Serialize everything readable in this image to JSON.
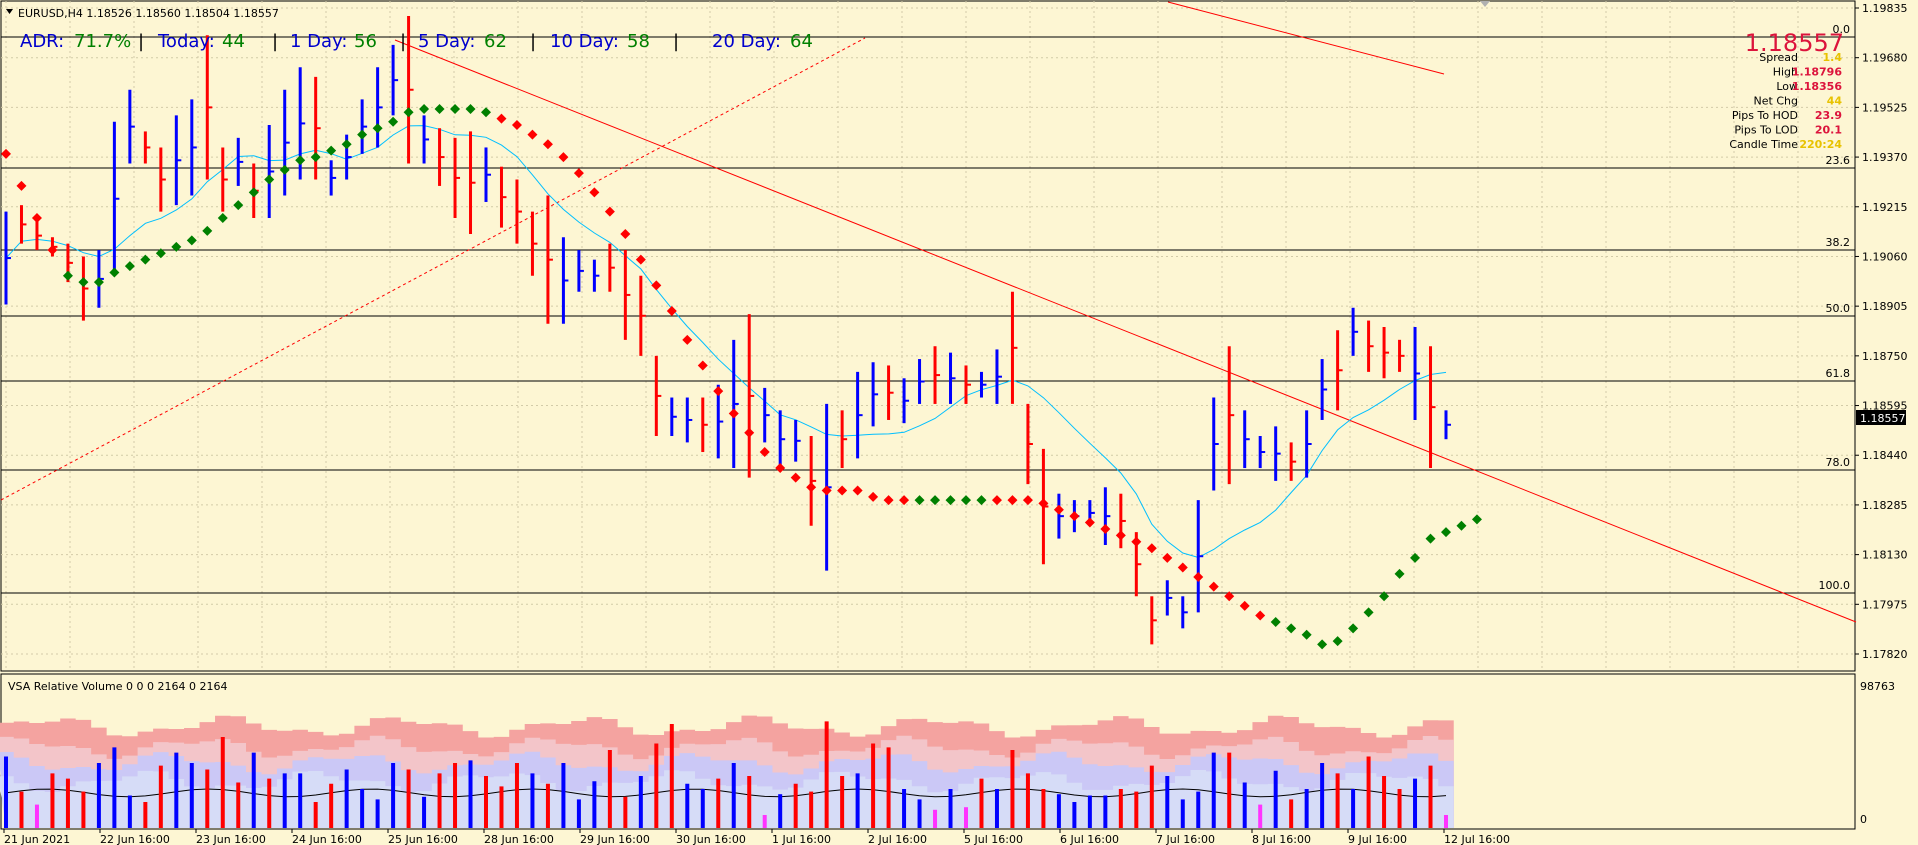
{
  "header": {
    "symbol_line": "EURUSD,H4  1.18526 1.18560 1.18504 1.18557",
    "adr_label": "ADR:",
    "adr_value": "71.7%",
    "today_label": "Today:",
    "today_value": "44",
    "day1_label": "1 Day:",
    "day1_value": "56",
    "day5_label": "5 Day:",
    "day5_value": "62",
    "day10_label": "10 Day:",
    "day10_value": "58",
    "day20_label": "20 Day:",
    "day20_value": "64"
  },
  "info_panel": {
    "big_price": "1.18557",
    "rows": [
      {
        "label": "Spread",
        "value": "1.4",
        "color": "#e8c200"
      },
      {
        "label": "High",
        "value": "1.18796",
        "color": "#dc143c"
      },
      {
        "label": "Low",
        "value": "1.18356",
        "color": "#dc143c"
      },
      {
        "label": "Net Chg",
        "value": "44",
        "color": "#e8c200"
      },
      {
        "label": "Pips To HOD",
        "value": "23.9",
        "color": "#dc143c"
      },
      {
        "label": "Pips To LOD",
        "value": "20.1",
        "color": "#dc143c"
      },
      {
        "label": "Candle Time",
        "value": "220:24",
        "color": "#e8c200"
      }
    ]
  },
  "price_axis": {
    "labels": [
      "1.19835",
      "1.19680",
      "1.19525",
      "1.19370",
      "1.19215",
      "1.19060",
      "1.18905",
      "1.18750",
      "1.18595",
      "1.18440",
      "1.18285",
      "1.18130",
      "1.17975",
      "1.17820"
    ],
    "current_price": "1.18557"
  },
  "fib_levels": [
    "0.0",
    "23.6",
    "38.2",
    "50.0",
    "61.8",
    "78.0",
    "100.0"
  ],
  "time_axis": [
    "21 Jun 2021",
    "22 Jun 16:00",
    "23 Jun 16:00",
    "24 Jun 16:00",
    "25 Jun 16:00",
    "28 Jun 16:00",
    "29 Jun 16:00",
    "30 Jun 16:00",
    "1 Jul 16:00",
    "2 Jul 16:00",
    "5 Jul 16:00",
    "6 Jul 16:00",
    "7 Jul 16:00",
    "8 Jul 16:00",
    "9 Jul 16:00",
    "12 Jul 16:00"
  ],
  "volume_panel": {
    "title": "VSA Relative Volume 0 0 0 2164 0 2164",
    "axis_top": "98763",
    "axis_bottom": "0"
  },
  "colors": {
    "background": "#fdf6d3",
    "grid": "#d2cba8",
    "bull": "#0000ff",
    "bear": "#ff0000",
    "ma": "#00bfff",
    "psar_up": "#008000",
    "psar_down": "#ff0000",
    "trendline": "#ff0000",
    "fib": "#000000"
  },
  "bars": [
    [
      1.192,
      1.1891,
      1
    ],
    [
      1.1922,
      1.191,
      0
    ],
    [
      1.1917,
      1.1908,
      0
    ],
    [
      1.1912,
      1.1906,
      0
    ],
    [
      1.191,
      1.1898,
      0
    ],
    [
      1.1906,
      1.1886,
      0
    ],
    [
      1.1908,
      1.189,
      1
    ],
    [
      1.1948,
      1.19,
      1
    ],
    [
      1.1958,
      1.1935,
      1
    ],
    [
      1.1945,
      1.1935,
      0
    ],
    [
      1.194,
      1.192,
      0
    ],
    [
      1.195,
      1.1922,
      1
    ],
    [
      1.1955,
      1.1925,
      1
    ],
    [
      1.1975,
      1.193,
      0
    ],
    [
      1.194,
      1.192,
      0
    ],
    [
      1.1943,
      1.1928,
      1
    ],
    [
      1.1935,
      1.1918,
      0
    ],
    [
      1.1947,
      1.1918,
      1
    ],
    [
      1.1958,
      1.1925,
      1
    ],
    [
      1.1965,
      1.193,
      1
    ],
    [
      1.1962,
      1.193,
      0
    ],
    [
      1.1936,
      1.1925,
      1
    ],
    [
      1.1944,
      1.193,
      1
    ],
    [
      1.1955,
      1.1938,
      1
    ],
    [
      1.1965,
      1.194,
      1
    ],
    [
      1.1972,
      1.195,
      1
    ],
    [
      1.1981,
      1.1935,
      0
    ],
    [
      1.195,
      1.1935,
      1
    ],
    [
      1.1946,
      1.1928,
      0
    ],
    [
      1.1943,
      1.1918,
      0
    ],
    [
      1.1945,
      1.1913,
      0
    ],
    [
      1.194,
      1.1923,
      1
    ],
    [
      1.1934,
      1.1915,
      0
    ],
    [
      1.193,
      1.191,
      0
    ],
    [
      1.192,
      1.19,
      0
    ],
    [
      1.1925,
      1.1885,
      0
    ],
    [
      1.1912,
      1.1885,
      1
    ],
    [
      1.1908,
      1.1895,
      1
    ],
    [
      1.1905,
      1.1895,
      1
    ],
    [
      1.191,
      1.1895,
      0
    ],
    [
      1.1908,
      1.188,
      0
    ],
    [
      1.19,
      1.1875,
      0
    ],
    [
      1.1875,
      1.185,
      0
    ],
    [
      1.1862,
      1.185,
      1
    ],
    [
      1.1862,
      1.1848,
      1
    ],
    [
      1.1862,
      1.1845,
      0
    ],
    [
      1.1866,
      1.1843,
      1
    ],
    [
      1.188,
      1.184,
      1
    ],
    [
      1.1888,
      1.1837,
      0
    ],
    [
      1.1865,
      1.1848,
      1
    ],
    [
      1.1858,
      1.184,
      1
    ],
    [
      1.1855,
      1.1842,
      1
    ],
    [
      1.185,
      1.1822,
      0
    ],
    [
      1.186,
      1.1808,
      1
    ],
    [
      1.1858,
      1.184,
      0
    ],
    [
      1.187,
      1.1843,
      1
    ],
    [
      1.1873,
      1.1853,
      1
    ],
    [
      1.1872,
      1.1855,
      0
    ],
    [
      1.1868,
      1.1854,
      1
    ],
    [
      1.1874,
      1.186,
      1
    ],
    [
      1.1878,
      1.186,
      0
    ],
    [
      1.1876,
      1.186,
      1
    ],
    [
      1.1872,
      1.186,
      0
    ],
    [
      1.187,
      1.1862,
      1
    ],
    [
      1.1877,
      1.186,
      1
    ],
    [
      1.1895,
      1.186,
      0
    ],
    [
      1.186,
      1.1835,
      0
    ],
    [
      1.1846,
      1.181,
      0
    ],
    [
      1.1832,
      1.1818,
      1
    ],
    [
      1.183,
      1.182,
      1
    ],
    [
      1.183,
      1.1822,
      1
    ],
    [
      1.1834,
      1.1816,
      1
    ],
    [
      1.1832,
      1.1815,
      0
    ],
    [
      1.182,
      1.18,
      0
    ],
    [
      1.18,
      1.1785,
      0
    ],
    [
      1.1805,
      1.1794,
      1
    ],
    [
      1.18,
      1.179,
      1
    ],
    [
      1.183,
      1.1795,
      1
    ],
    [
      1.1862,
      1.1833,
      1
    ],
    [
      1.1878,
      1.1835,
      0
    ],
    [
      1.1858,
      1.184,
      1
    ],
    [
      1.185,
      1.184,
      1
    ],
    [
      1.1853,
      1.1836,
      1
    ],
    [
      1.1848,
      1.1836,
      0
    ],
    [
      1.1858,
      1.1837,
      1
    ],
    [
      1.1874,
      1.1855,
      1
    ],
    [
      1.1883,
      1.1858,
      0
    ],
    [
      1.189,
      1.1875,
      1
    ],
    [
      1.1886,
      1.187,
      0
    ],
    [
      1.1884,
      1.1868,
      0
    ],
    [
      1.188,
      1.187,
      0
    ],
    [
      1.1884,
      1.1855,
      1
    ],
    [
      1.1878,
      1.184,
      0
    ],
    [
      1.1858,
      1.1849,
      1
    ]
  ],
  "psar": [
    1.1938,
    1.1928,
    1.1918,
    1.1908,
    1.19,
    1.1898,
    1.1898,
    1.1901,
    1.1903,
    1.1905,
    1.1907,
    1.1909,
    1.1911,
    1.1914,
    1.1918,
    1.1922,
    1.1926,
    1.193,
    1.1933,
    1.1936,
    1.1937,
    1.1939,
    1.1941,
    1.1944,
    1.1946,
    1.1948,
    1.1951,
    1.1952,
    1.1952,
    1.1952,
    1.1952,
    1.1951,
    1.1949,
    1.1947,
    1.1944,
    1.1941,
    1.1937,
    1.1932,
    1.1926,
    1.192,
    1.1913,
    1.1905,
    1.1897,
    1.1889,
    1.188,
    1.1872,
    1.1864,
    1.1857,
    1.1851,
    1.1845,
    1.184,
    1.1837,
    1.1834,
    1.1833,
    1.1833,
    1.1833,
    1.1831,
    1.183,
    1.183,
    1.183,
    1.183,
    1.183,
    1.183,
    1.183,
    1.183,
    1.183,
    1.183,
    1.1829,
    1.1827,
    1.1825,
    1.1823,
    1.1821,
    1.1819,
    1.1817,
    1.1815,
    1.1812,
    1.1809,
    1.1806,
    1.1803,
    1.18,
    1.1797,
    1.1794,
    1.1792,
    1.179,
    1.1788,
    1.1785,
    1.1786,
    1.179,
    1.1795,
    1.18,
    1.1807,
    1.1812,
    1.1818,
    1.182,
    1.1822,
    1.1824
  ],
  "psar_up_ranges": [
    [
      4,
      31
    ],
    [
      59,
      63
    ],
    [
      82,
      95
    ]
  ],
  "volume": [
    [
      0.55,
      1
    ],
    [
      0.28,
      0
    ],
    [
      0.18,
      0
    ],
    [
      0.42,
      0
    ],
    [
      0.38,
      0
    ],
    [
      0.28,
      0
    ],
    [
      0.5,
      1
    ],
    [
      0.62,
      1
    ],
    [
      0.25,
      1
    ],
    [
      0.2,
      0
    ],
    [
      0.48,
      0
    ],
    [
      0.58,
      1
    ],
    [
      0.5,
      1
    ],
    [
      0.45,
      0
    ],
    [
      0.7,
      0
    ],
    [
      0.35,
      0
    ],
    [
      0.58,
      1
    ],
    [
      0.38,
      0
    ],
    [
      0.42,
      1
    ],
    [
      0.42,
      1
    ],
    [
      0.2,
      0
    ],
    [
      0.34,
      0
    ],
    [
      0.45,
      1
    ],
    [
      0.3,
      1
    ],
    [
      0.22,
      1
    ],
    [
      0.5,
      1
    ],
    [
      0.45,
      0
    ],
    [
      0.24,
      1
    ],
    [
      0.42,
      0
    ],
    [
      0.5,
      0
    ],
    [
      0.52,
      1
    ],
    [
      0.4,
      0
    ],
    [
      0.32,
      0
    ],
    [
      0.5,
      0
    ],
    [
      0.42,
      1
    ],
    [
      0.34,
      0
    ],
    [
      0.5,
      1
    ],
    [
      0.22,
      1
    ],
    [
      0.36,
      1
    ],
    [
      0.6,
      0
    ],
    [
      0.24,
      0
    ],
    [
      0.4,
      1
    ],
    [
      0.65,
      0
    ],
    [
      0.8,
      0
    ],
    [
      0.34,
      1
    ],
    [
      0.3,
      1
    ],
    [
      0.38,
      0
    ],
    [
      0.5,
      1
    ],
    [
      0.4,
      0
    ],
    [
      0.1,
      1
    ],
    [
      0.26,
      1
    ],
    [
      0.34,
      0
    ],
    [
      0.28,
      0
    ],
    [
      0.82,
      0
    ],
    [
      0.4,
      0
    ],
    [
      0.42,
      1
    ],
    [
      0.65,
      0
    ],
    [
      0.62,
      0
    ],
    [
      0.3,
      1
    ],
    [
      0.22,
      1
    ],
    [
      0.14,
      0
    ],
    [
      0.3,
      1
    ],
    [
      0.16,
      1
    ],
    [
      0.38,
      0
    ],
    [
      0.3,
      1
    ],
    [
      0.6,
      0
    ],
    [
      0.42,
      0
    ],
    [
      0.3,
      0
    ],
    [
      0.26,
      1
    ],
    [
      0.2,
      1
    ],
    [
      0.25,
      1
    ],
    [
      0.25,
      1
    ],
    [
      0.3,
      0
    ],
    [
      0.28,
      0
    ],
    [
      0.48,
      0
    ],
    [
      0.4,
      1
    ],
    [
      0.22,
      1
    ],
    [
      0.28,
      1
    ],
    [
      0.58,
      1
    ],
    [
      0.58,
      0
    ],
    [
      0.35,
      1
    ],
    [
      0.18,
      1
    ],
    [
      0.44,
      1
    ],
    [
      0.22,
      0
    ],
    [
      0.3,
      1
    ],
    [
      0.5,
      1
    ],
    [
      0.42,
      0
    ],
    [
      0.3,
      1
    ],
    [
      0.55,
      0
    ],
    [
      0.4,
      0
    ],
    [
      0.3,
      0
    ],
    [
      0.38,
      1
    ],
    [
      0.48,
      0
    ],
    [
      0.1,
      1
    ]
  ]
}
